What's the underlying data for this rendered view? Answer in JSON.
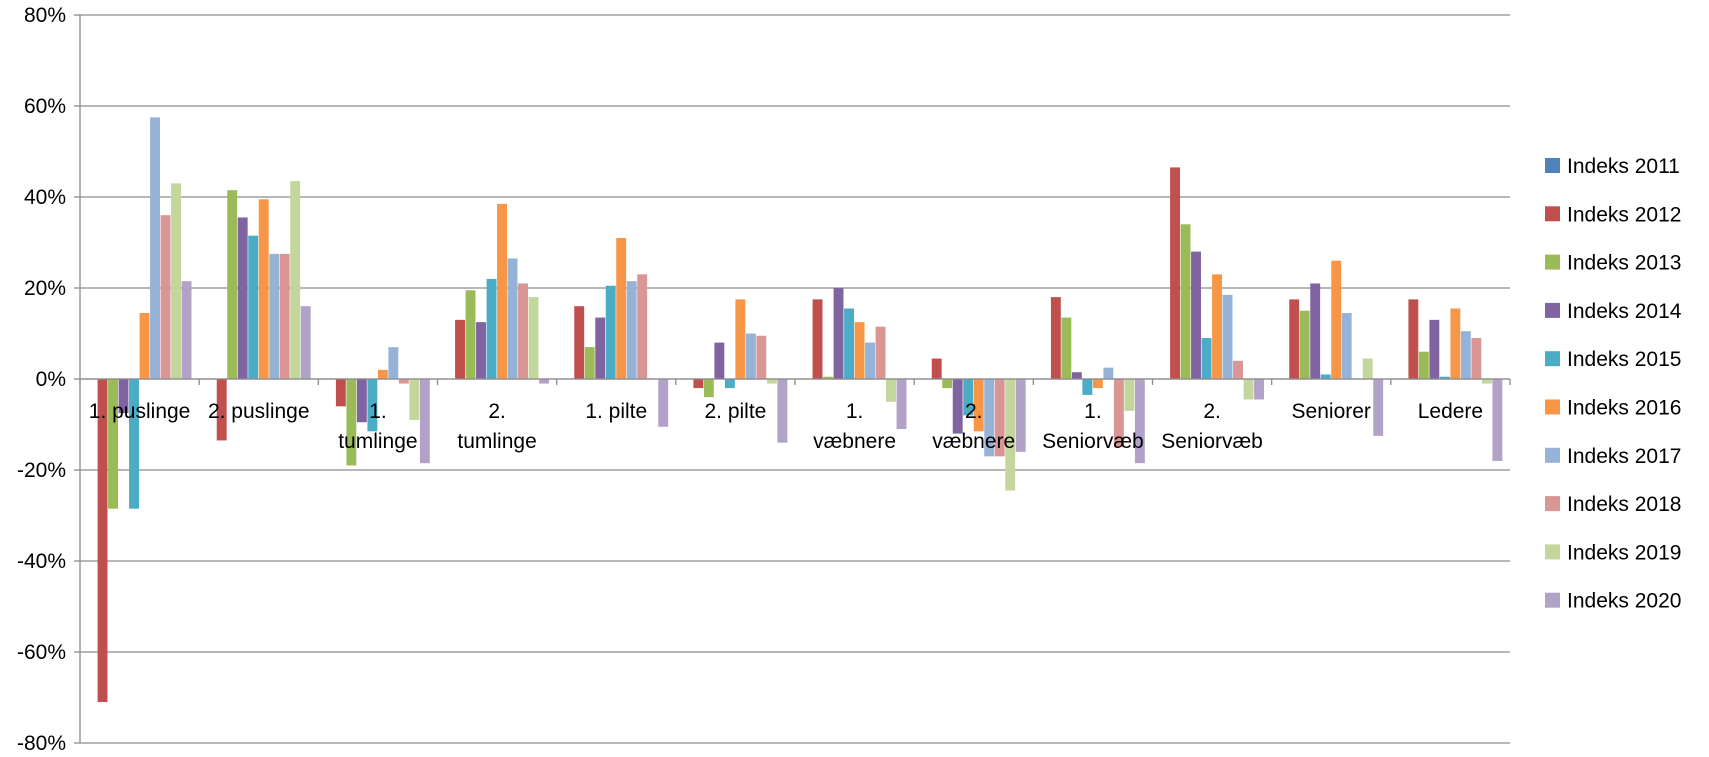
{
  "chart_data": {
    "type": "bar",
    "title": "",
    "xlabel": "",
    "ylabel": "",
    "ylim": [
      -0.8,
      0.8
    ],
    "yticks": [
      -0.8,
      -0.6,
      -0.4,
      -0.2,
      0,
      0.2,
      0.4,
      0.6,
      0.8
    ],
    "ytick_labels": [
      "-80%",
      "-60%",
      "-40%",
      "-20%",
      "0%",
      "20%",
      "40%",
      "60%",
      "80%"
    ],
    "grid": true,
    "legend_position": "right",
    "categories": [
      [
        "1. puslinge"
      ],
      [
        "2. puslinge"
      ],
      [
        "1.",
        "tumlinge"
      ],
      [
        "2.",
        "tumlinge"
      ],
      [
        "1. pilte"
      ],
      [
        "2. pilte"
      ],
      [
        "1.",
        "væbnere"
      ],
      [
        "2.",
        "væbnere"
      ],
      [
        "1.",
        "Seniorvæb"
      ],
      [
        "2.",
        "Seniorvæb"
      ],
      [
        "Seniorer"
      ],
      [
        "Ledere"
      ]
    ],
    "series": [
      {
        "name": "Indeks 2011",
        "color": "#4f81bd",
        "values": [
          0,
          0,
          0,
          0,
          0,
          0,
          0,
          0,
          0,
          0,
          0,
          0
        ]
      },
      {
        "name": "Indeks 2012",
        "color": "#c0504d",
        "values": [
          -0.71,
          -0.135,
          -0.06,
          0.13,
          0.16,
          -0.02,
          0.175,
          0.045,
          0.18,
          0.465,
          0.175,
          0.175
        ]
      },
      {
        "name": "Indeks 2013",
        "color": "#9bbb59",
        "values": [
          -0.285,
          0.415,
          -0.19,
          0.195,
          0.07,
          -0.04,
          0.005,
          -0.02,
          0.135,
          0.34,
          0.15,
          0.06
        ]
      },
      {
        "name": "Indeks 2014",
        "color": "#8064a2",
        "values": [
          -0.075,
          0.355,
          -0.095,
          0.125,
          0.135,
          0.08,
          0.2,
          -0.12,
          0.015,
          0.28,
          0.21,
          0.13
        ]
      },
      {
        "name": "Indeks 2015",
        "color": "#4bacc6",
        "values": [
          -0.285,
          0.315,
          -0.115,
          0.22,
          0.205,
          -0.02,
          0.155,
          -0.08,
          -0.035,
          0.09,
          0.01,
          0.005
        ]
      },
      {
        "name": "Indeks 2016",
        "color": "#f79646",
        "values": [
          0.145,
          0.395,
          0.02,
          0.385,
          0.31,
          0.175,
          0.125,
          -0.115,
          -0.02,
          0.23,
          0.26,
          0.155
        ]
      },
      {
        "name": "Indeks 2017",
        "color": "#95b3d7",
        "values": [
          0.575,
          0.275,
          0.07,
          0.265,
          0.215,
          0.1,
          0.08,
          -0.17,
          0.025,
          0.185,
          0.145,
          0.105
        ]
      },
      {
        "name": "Indeks 2018",
        "color": "#d99694",
        "values": [
          0.36,
          0.275,
          -0.01,
          0.21,
          0.23,
          0.095,
          0.115,
          -0.17,
          -0.15,
          0.04,
          0,
          0.09
        ]
      },
      {
        "name": "Indeks 2019",
        "color": "#c3d69b",
        "values": [
          0.43,
          0.435,
          -0.09,
          0.18,
          0,
          -0.01,
          -0.05,
          -0.245,
          -0.07,
          -0.045,
          0.045,
          -0.01
        ]
      },
      {
        "name": "Indeks 2020",
        "color": "#b3a2c7",
        "values": [
          0.215,
          0.16,
          -0.185,
          -0.01,
          -0.105,
          -0.14,
          -0.11,
          -0.16,
          -0.185,
          -0.045,
          -0.125,
          -0.18
        ]
      }
    ]
  }
}
